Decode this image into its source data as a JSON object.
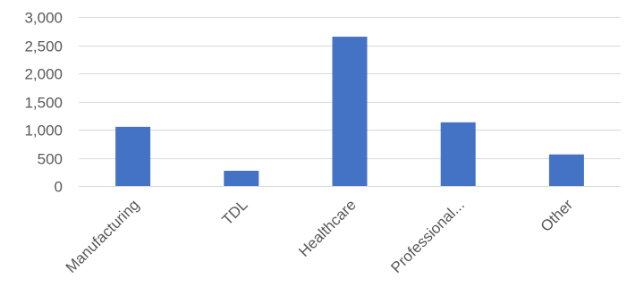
{
  "chart_data": {
    "type": "bar",
    "categories": [
      "Manufacturing",
      "TDL",
      "Healthcare",
      "Professional...",
      "Other"
    ],
    "series": [
      {
        "values": [
          1050,
          270,
          2650,
          1130,
          560
        ],
        "color": "#4472c4"
      }
    ],
    "ylim": [
      0,
      3000
    ],
    "yticks": [
      0,
      500,
      1000,
      1500,
      2000,
      2500,
      3000
    ],
    "ytick_labels": [
      "0",
      "500",
      "1,000",
      "1,500",
      "2,000",
      "2,500",
      "3,000"
    ],
    "grid": true,
    "gridline_color": "#d9d9d9",
    "legend": "none"
  }
}
